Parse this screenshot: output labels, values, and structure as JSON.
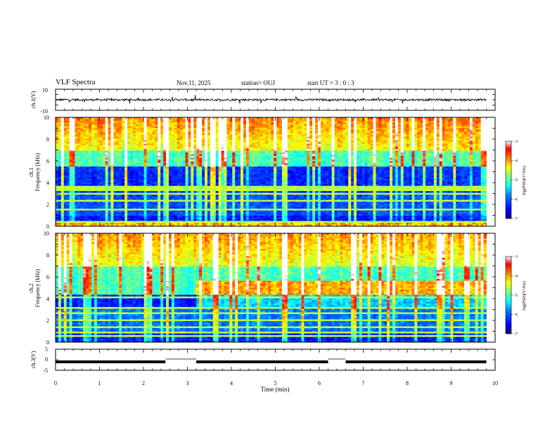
{
  "header": {
    "title": "VLF Spectra",
    "date": "Nov.11, 2025",
    "station": "station= OUJ",
    "start": "start  UT =   3  : 0  : 3"
  },
  "chart_data": [
    {
      "type": "line",
      "panel": "ch1-waveform",
      "ylabel": "ch.1(V)",
      "ylim": [
        -10,
        10
      ],
      "yticks": [
        "10",
        "-10"
      ],
      "x_range_min": [
        0,
        9.8
      ],
      "series": [
        {
          "baseline": 0,
          "noise_amplitude": 1,
          "spike_amplitude": 4
        }
      ]
    },
    {
      "type": "heatmap",
      "panel": "ch1-spectrogram",
      "ylabel": "ch.1\nFrequency (kHz)",
      "ylabel_top": "ch.1",
      "ylabel_bottom": "Frequency (kHz)",
      "ylim": [
        0,
        10
      ],
      "yticks": [
        "0",
        "2",
        "4",
        "6",
        "8",
        "10"
      ],
      "x_range_min": [
        0,
        9.8
      ],
      "colorbar": {
        "label": "log(PSD)(V²/Hz)",
        "range": [
          -7,
          -3
        ],
        "ticks": [
          "-3",
          "-4",
          "-5",
          "-6",
          "-7"
        ],
        "colors": [
          "#00007f",
          "#0000ff",
          "#007fff",
          "#00ffff",
          "#7fff7f",
          "#ffff00",
          "#ff7f00",
          "#ff0000",
          "#ffffff"
        ]
      }
    },
    {
      "type": "heatmap",
      "panel": "ch2-spectrogram",
      "ylabel": "ch.2\nFrequency (kHz)",
      "ylabel_top": "ch.2",
      "ylabel_bottom": "Frequency (kHz)",
      "ylim": [
        0,
        10
      ],
      "yticks": [
        "0",
        "2",
        "4",
        "6",
        "8",
        "10"
      ],
      "x_range_min": [
        0,
        9.8
      ],
      "regime_change_min": 3.2,
      "colorbar": {
        "label": "log(PSD)(V²/Hz)",
        "range": [
          -7,
          -3
        ],
        "ticks": [
          "-3",
          "-4",
          "-5",
          "-6",
          "-7"
        ],
        "colors": [
          "#00007f",
          "#0000ff",
          "#007fff",
          "#00ffff",
          "#7fff7f",
          "#ffff00",
          "#ff7f00",
          "#ff0000",
          "#ffffff"
        ]
      }
    },
    {
      "type": "line",
      "panel": "ch3-signal",
      "ylabel": "ch.3(V)",
      "ylim": [
        -5,
        5
      ],
      "yticks": [
        "5",
        "0",
        "-5"
      ],
      "xlabel": "Time (min)",
      "xlim": [
        0,
        10
      ],
      "xticks": [
        "0",
        "1",
        "2",
        "3",
        "4",
        "5",
        "6",
        "7",
        "8",
        "9",
        "10"
      ],
      "level": -1,
      "gaps_min": [
        [
          2.5,
          3.2
        ],
        [
          6.2,
          6.6
        ]
      ]
    }
  ]
}
